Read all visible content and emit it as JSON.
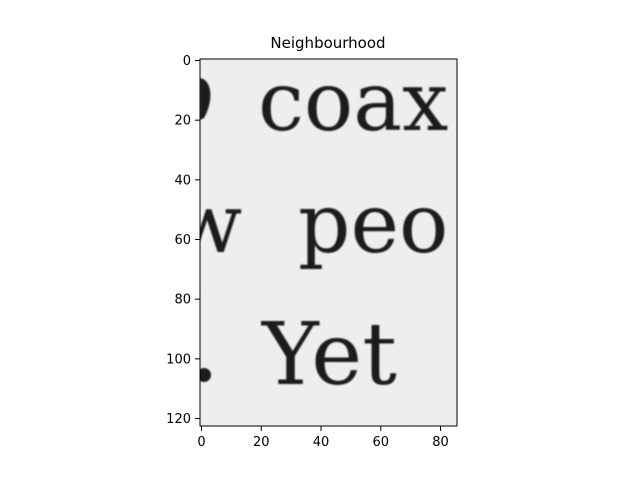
{
  "title": "Neighbourhood",
  "image": {
    "description_words": [
      "coax",
      "peo",
      "Yet"
    ],
    "width_units": 86,
    "height_units": 123,
    "background_color": "#f0f0f0",
    "ink_color": "#1c1c1c",
    "colormap": "gray"
  },
  "axes": {
    "x_ticks": [
      0,
      20,
      40,
      60,
      80
    ],
    "y_ticks": [
      0,
      20,
      40,
      60,
      80,
      100,
      120
    ],
    "xlim": [
      -0.5,
      85.5
    ],
    "ylim": [
      122.5,
      -0.5
    ],
    "y_inverted": true
  }
}
